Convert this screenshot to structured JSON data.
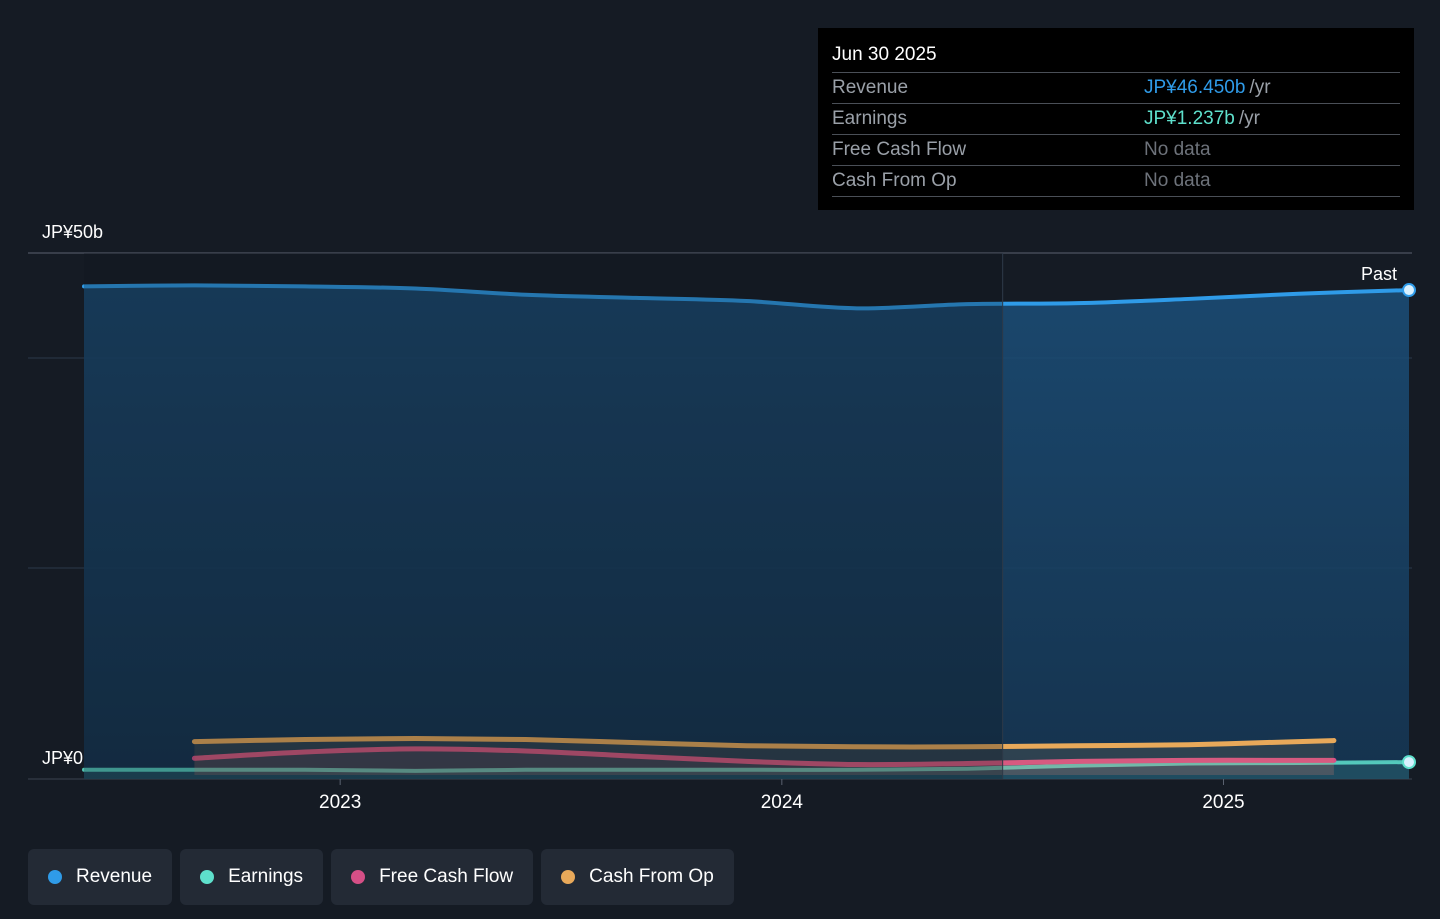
{
  "colors": {
    "background": "#151b24",
    "revenue": "#2f9be8",
    "earnings": "#5ee0cc",
    "free_cash_flow": "#d54f86",
    "cash_from_op": "#e8a95a"
  },
  "tooltip": {
    "date": "Jun 30 2025",
    "rows": [
      {
        "label": "Revenue",
        "value": "JP¥46.450b",
        "unit": "/yr",
        "color": "#2f9be8"
      },
      {
        "label": "Earnings",
        "value": "JP¥1.237b",
        "unit": "/yr",
        "color": "#5ee0cc"
      },
      {
        "label": "Free Cash Flow",
        "value": "No data"
      },
      {
        "label": "Cash From Op",
        "value": "No data"
      }
    ]
  },
  "legend": [
    {
      "label": "Revenue",
      "color": "#2f9be8"
    },
    {
      "label": "Earnings",
      "color": "#5ee0cc"
    },
    {
      "label": "Free Cash Flow",
      "color": "#d54f86"
    },
    {
      "label": "Cash From Op",
      "color": "#e8a95a"
    }
  ],
  "chart_data": {
    "type": "area",
    "title": "",
    "xlabel": "",
    "ylabel": "",
    "y_top_label": "JP¥50b",
    "y_bottom_label": "JP¥0",
    "past_label": "Past",
    "ylim": [
      0,
      50
    ],
    "xlim": [
      2022.42,
      2025.42
    ],
    "x_ticks": [
      {
        "value": 2023.0,
        "label": "2023"
      },
      {
        "value": 2024.0,
        "label": "2024"
      },
      {
        "value": 2025.0,
        "label": "2025"
      }
    ],
    "past_divider_x": 2024.5,
    "grid": true,
    "legend_position": "bottom",
    "series": [
      {
        "name": "Revenue",
        "key": "revenue",
        "x": [
          2022.42,
          2022.67,
          2022.92,
          2023.17,
          2023.42,
          2023.67,
          2023.92,
          2024.17,
          2024.42,
          2024.67,
          2024.92,
          2025.17,
          2025.42
        ],
        "values": [
          46.8,
          46.9,
          46.8,
          46.6,
          46.0,
          45.7,
          45.4,
          44.7,
          45.1,
          45.2,
          45.6,
          46.1,
          46.45
        ]
      },
      {
        "name": "Earnings",
        "key": "earnings",
        "x": [
          2022.42,
          2022.67,
          2022.92,
          2023.17,
          2023.42,
          2023.67,
          2023.92,
          2024.17,
          2024.42,
          2024.67,
          2024.92,
          2025.17,
          2025.42
        ],
        "values": [
          0.5,
          0.5,
          0.5,
          0.4,
          0.5,
          0.5,
          0.5,
          0.5,
          0.6,
          0.9,
          1.1,
          1.15,
          1.237
        ]
      },
      {
        "name": "Free Cash Flow",
        "key": "free_cash_flow",
        "x": [
          2022.67,
          2022.92,
          2023.17,
          2023.42,
          2023.67,
          2023.92,
          2024.17,
          2024.42,
          2024.67,
          2024.92,
          2025.17,
          2025.25
        ],
        "values": [
          1.6,
          2.2,
          2.5,
          2.3,
          1.8,
          1.3,
          1.0,
          1.1,
          1.3,
          1.4,
          1.4,
          1.4
        ]
      },
      {
        "name": "Cash From Op",
        "key": "cash_from_op",
        "x": [
          2022.67,
          2022.92,
          2023.17,
          2023.42,
          2023.67,
          2023.92,
          2024.17,
          2024.42,
          2024.67,
          2024.92,
          2025.17,
          2025.25
        ],
        "values": [
          3.2,
          3.4,
          3.5,
          3.4,
          3.1,
          2.8,
          2.7,
          2.7,
          2.8,
          2.9,
          3.2,
          3.3
        ]
      }
    ]
  }
}
